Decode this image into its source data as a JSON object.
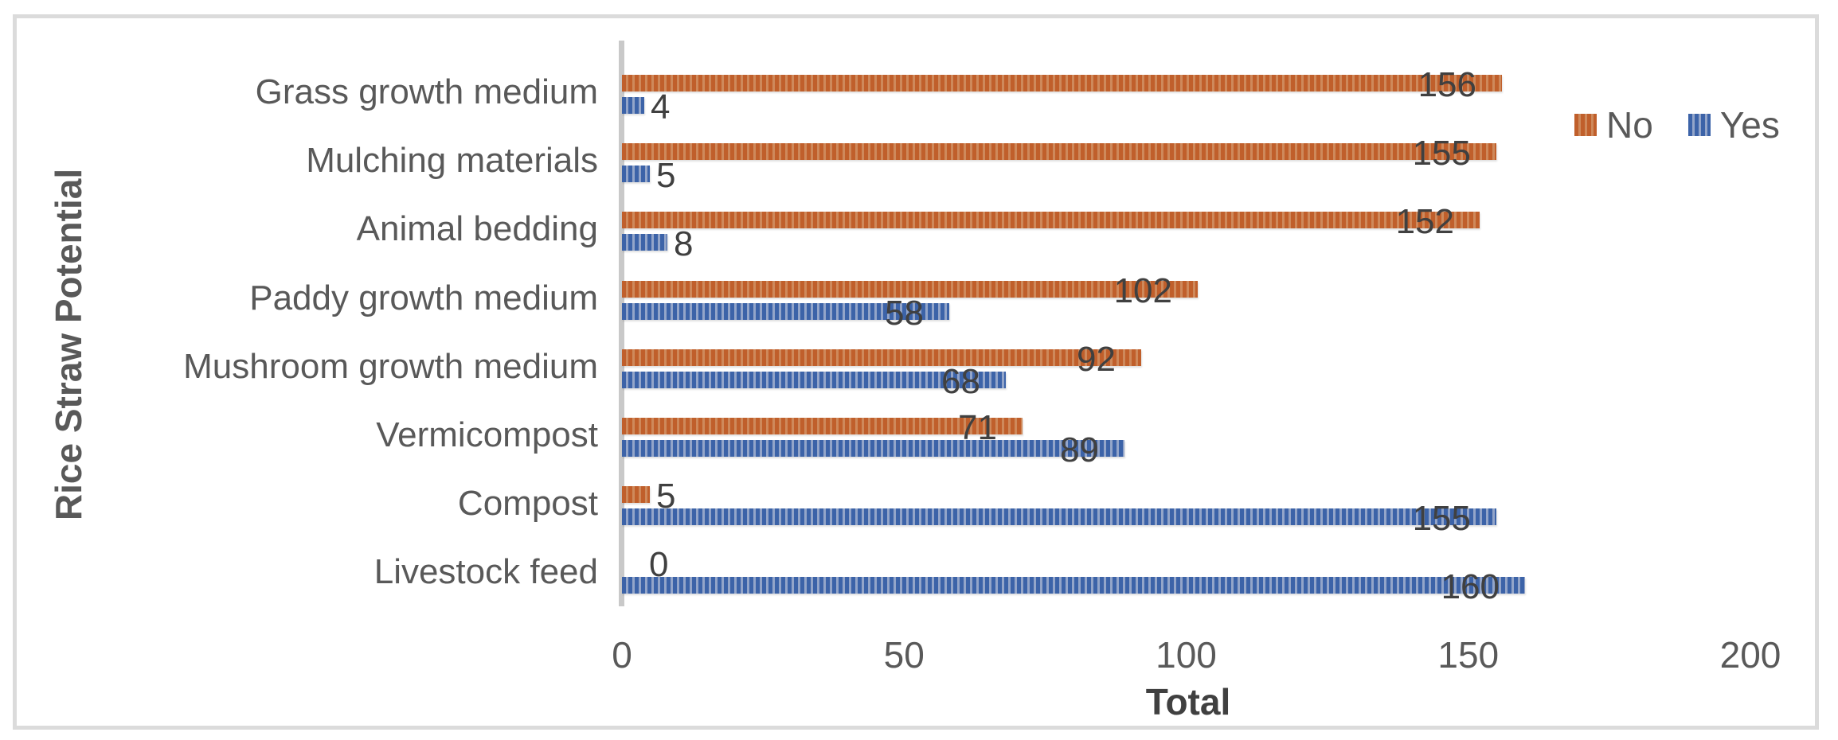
{
  "chart_data": {
    "type": "bar",
    "orientation": "horizontal",
    "title": "",
    "xlabel": "Total",
    "ylabel": "Rice Straw Potential",
    "categories": [
      "Grass growth medium",
      "Mulching materials",
      "Animal bedding",
      "Paddy growth medium",
      "Mushroom growth medium",
      "Vermicompost",
      "Compost",
      "Livestock feed"
    ],
    "series": [
      {
        "name": "No",
        "color": "#C05F2B",
        "stripe_color": "#CE895B",
        "pattern": "vertical-stripes",
        "values": [
          156,
          155,
          152,
          102,
          92,
          71,
          5,
          0
        ]
      },
      {
        "name": "Yes",
        "color": "#3C63A8",
        "stripe_color": "#93A5C9",
        "pattern": "vertical-stripes",
        "values": [
          4,
          5,
          8,
          58,
          68,
          89,
          155,
          160
        ]
      }
    ],
    "xlim": [
      0,
      200
    ],
    "xticks": [
      0,
      50,
      100,
      150,
      200
    ],
    "grid": false,
    "data_labels": true,
    "legend_position": "top-right"
  },
  "legend": {
    "items": [
      {
        "label": "No",
        "color": "#C05F2B"
      },
      {
        "label": "Yes",
        "color": "#3C63A8"
      }
    ]
  },
  "frame": {
    "border_color": "#DBDBDB",
    "background": "#FFFFFF",
    "axis_line_color": "#C9C9C9",
    "text_color": "#595959",
    "data_label_color": "#404040"
  }
}
